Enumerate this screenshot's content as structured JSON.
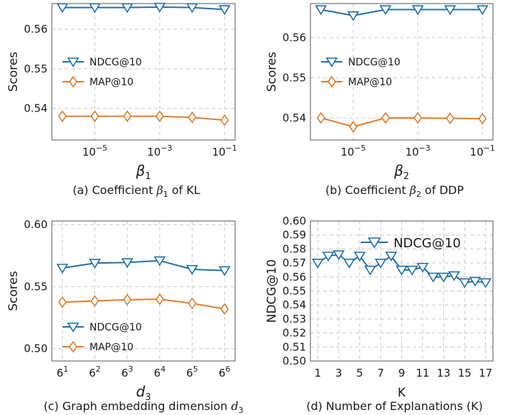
{
  "colors": {
    "ndcg": "#1f6fa8",
    "map": "#e07b2a"
  },
  "chart_data": [
    {
      "id": "a",
      "type": "line",
      "xscale": "log",
      "x": [
        1e-06,
        1e-05,
        0.0001,
        0.001,
        0.01,
        0.1
      ],
      "xticks": [
        1e-05,
        0.001,
        0.1
      ],
      "xtick_labels": [
        {
          "base": "10",
          "exp": "−5"
        },
        {
          "base": "10",
          "exp": "−3"
        },
        {
          "base": "10",
          "exp": "−1"
        }
      ],
      "ylim": [
        0.532,
        0.5665
      ],
      "yticks": [
        0.54,
        0.55,
        0.56
      ],
      "ytick_labels": [
        "0.54",
        "0.55",
        "0.56"
      ],
      "series": [
        {
          "name": "NDCG@10",
          "marker": "triangle-down",
          "values": [
            0.5655,
            0.5655,
            0.5655,
            0.5656,
            0.5655,
            0.565
          ]
        },
        {
          "name": "MAP@10",
          "marker": "diamond",
          "values": [
            0.538,
            0.538,
            0.538,
            0.538,
            0.5377,
            0.537
          ]
        }
      ],
      "ylabel": "Scores",
      "xlabel": {
        "main": "β",
        "sub": "1"
      },
      "legend": "center-left",
      "caption": {
        "pre": "(a) Coefficient ",
        "sym": "β",
        "sub": "1",
        "post": " of KL"
      }
    },
    {
      "id": "b",
      "type": "line",
      "xscale": "log",
      "x": [
        1e-06,
        1e-05,
        0.0001,
        0.001,
        0.01,
        0.1
      ],
      "xticks": [
        1e-05,
        0.001,
        0.1
      ],
      "xtick_labels": [
        {
          "base": "10",
          "exp": "−5"
        },
        {
          "base": "10",
          "exp": "−3"
        },
        {
          "base": "10",
          "exp": "−1"
        }
      ],
      "ylim": [
        0.5345,
        0.5685
      ],
      "yticks": [
        0.54,
        0.55,
        0.56
      ],
      "ytick_labels": [
        "0.54",
        "0.55",
        "0.56"
      ],
      "series": [
        {
          "name": "NDCG@10",
          "marker": "triangle-down",
          "values": [
            0.567,
            0.5655,
            0.567,
            0.567,
            0.567,
            0.567
          ]
        },
        {
          "name": "MAP@10",
          "marker": "diamond",
          "values": [
            0.54,
            0.5378,
            0.54,
            0.54,
            0.5399,
            0.5398
          ]
        }
      ],
      "ylabel": "Scores",
      "xlabel": {
        "main": "β",
        "sub": "2"
      },
      "legend": "center-left",
      "caption": {
        "pre": "(b) Coefficient ",
        "sym": "β",
        "sub": "2",
        "post": " of DDP"
      }
    },
    {
      "id": "c",
      "type": "line",
      "xscale": "log",
      "x": [
        6,
        36,
        216,
        1296,
        7776,
        46656
      ],
      "xticks": [
        6,
        36,
        216,
        1296,
        7776,
        46656
      ],
      "xtick_labels": [
        {
          "base": "6",
          "exp": "1"
        },
        {
          "base": "6",
          "exp": "2"
        },
        {
          "base": "6",
          "exp": "3"
        },
        {
          "base": "6",
          "exp": "4"
        },
        {
          "base": "6",
          "exp": "5"
        },
        {
          "base": "6",
          "exp": "6"
        }
      ],
      "ylim": [
        0.49,
        0.603
      ],
      "yticks": [
        0.5,
        0.55,
        0.6
      ],
      "ytick_labels": [
        "0.50",
        "0.55",
        "0.60"
      ],
      "series": [
        {
          "name": "NDCG@10",
          "marker": "triangle-down",
          "values": [
            0.565,
            0.569,
            0.5695,
            0.571,
            0.564,
            0.563
          ]
        },
        {
          "name": "MAP@10",
          "marker": "diamond",
          "values": [
            0.5375,
            0.5385,
            0.5395,
            0.5398,
            0.5365,
            0.532
          ]
        }
      ],
      "ylabel": "Scores",
      "xlabel": {
        "main": "d",
        "sub": "3"
      },
      "legend": "lower-left",
      "caption": {
        "pre": "(c)  Graph embedding dimension ",
        "sym": "d",
        "sub": "3",
        "post": ""
      }
    },
    {
      "id": "d",
      "type": "line",
      "xscale": "linear",
      "x": [
        1,
        2,
        3,
        4,
        5,
        6,
        7,
        8,
        9,
        10,
        11,
        12,
        13,
        14,
        15,
        16,
        17
      ],
      "xticks": [
        1,
        3,
        5,
        7,
        9,
        11,
        13,
        15,
        17
      ],
      "xtick_labels": [
        "1",
        "3",
        "5",
        "7",
        "9",
        "11",
        "13",
        "15",
        "17"
      ],
      "xlim": [
        0.3,
        17.7
      ],
      "ylim": [
        0.5,
        0.6
      ],
      "yticks": [
        0.5,
        0.51,
        0.52,
        0.53,
        0.54,
        0.55,
        0.56,
        0.57,
        0.58,
        0.59,
        0.6
      ],
      "ytick_labels": [
        "0.50",
        "0.51",
        "0.52",
        "0.53",
        "0.54",
        "0.55",
        "0.56",
        "0.57",
        "0.58",
        "0.59",
        "0.60"
      ],
      "series": [
        {
          "name": "NDCG@10",
          "marker": "triangle-down",
          "values": [
            0.57,
            0.575,
            0.576,
            0.57,
            0.575,
            0.565,
            0.57,
            0.575,
            0.565,
            0.565,
            0.567,
            0.56,
            0.56,
            0.561,
            0.556,
            0.557,
            0.556
          ]
        }
      ],
      "ylabel": "NDCG@10",
      "xlabel": {
        "main": "K",
        "sub": ""
      },
      "legend": "top-right",
      "caption": {
        "pre": "(d) Number of Explanations (K)",
        "sym": "",
        "sub": "",
        "post": ""
      }
    }
  ]
}
